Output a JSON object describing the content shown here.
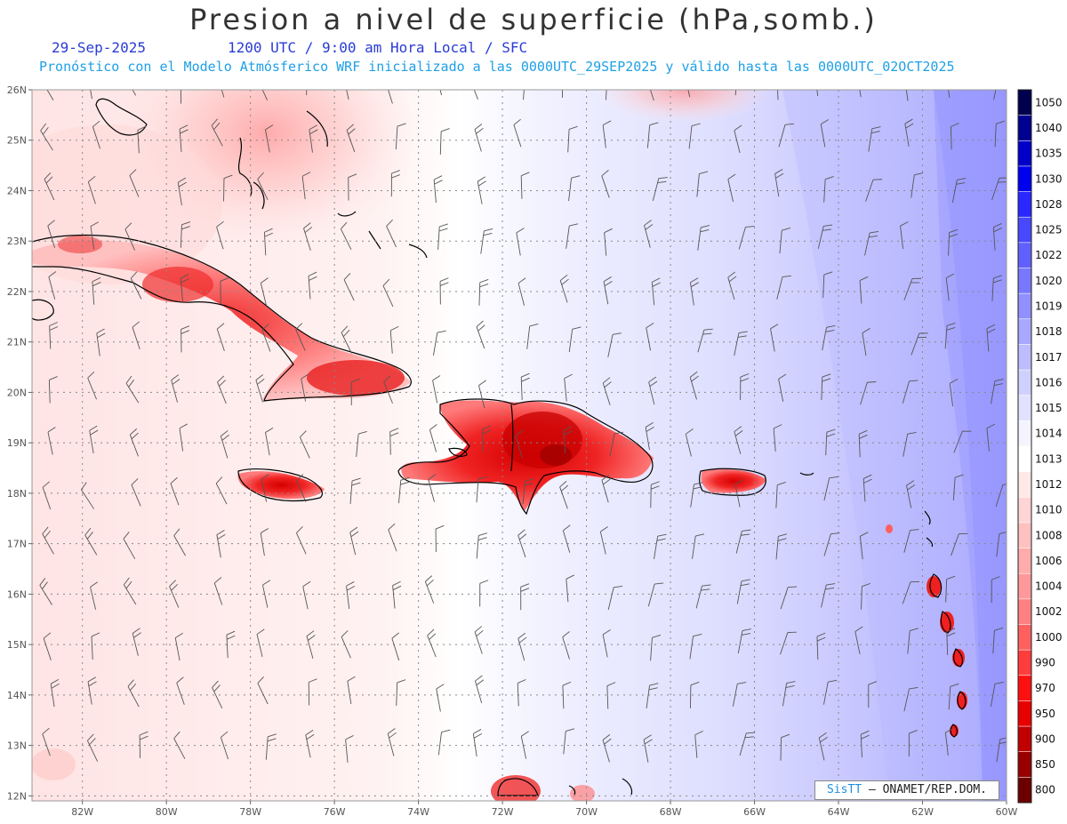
{
  "header": {
    "title": "Presion a nivel de superficie (hPa,somb.)",
    "date": "29-Sep-2025",
    "time_info": "1200 UTC / 9:00 am Hora Local / SFC",
    "model_info": "Pronóstico con el Modelo Atmósferico WRF inicializado a las 0000UTC_29SEP2025 y válido hasta las  0000UTC_02OCT2025"
  },
  "credit": {
    "brand": "SisTT",
    "text": "– ONAMET/REP.DOM."
  },
  "map": {
    "lon_range": [
      -83.2,
      -60.0
    ],
    "lat_range": [
      11.9,
      26.0
    ],
    "lon_ticks": [
      "82W",
      "80W",
      "78W",
      "76W",
      "74W",
      "72W",
      "70W",
      "68W",
      "66W",
      "64W",
      "62W",
      "60W"
    ],
    "lat_ticks": [
      "26N",
      "25N",
      "24N",
      "23N",
      "22N",
      "21N",
      "20N",
      "19N",
      "18N",
      "17N",
      "16N",
      "15N",
      "14N",
      "13N",
      "12N"
    ]
  },
  "colorbar": {
    "labels": [
      "1050",
      "1040",
      "1035",
      "1030",
      "1028",
      "1025",
      "1022",
      "1020",
      "1019",
      "1018",
      "1017",
      "1016",
      "1015",
      "1014",
      "1013",
      "1012",
      "1010",
      "1008",
      "1006",
      "1004",
      "1002",
      "1000",
      "990",
      "970",
      "950",
      "900",
      "850",
      "800"
    ],
    "colors": [
      "#00004e",
      "#000090",
      "#0000c8",
      "#0000f0",
      "#2828ff",
      "#4848ff",
      "#6060ff",
      "#7878ff",
      "#9090ff",
      "#a8a8ff",
      "#bcbcff",
      "#d0d0ff",
      "#e2e2ff",
      "#f4f4ff",
      "#ffffff",
      "#ffe8e8",
      "#ffd4d4",
      "#ffc0c0",
      "#ffacac",
      "#ff9898",
      "#ff8080",
      "#ff6060",
      "#ff3c3c",
      "#ff1010",
      "#e80000",
      "#c00000",
      "#980000",
      "#6c0000"
    ]
  }
}
